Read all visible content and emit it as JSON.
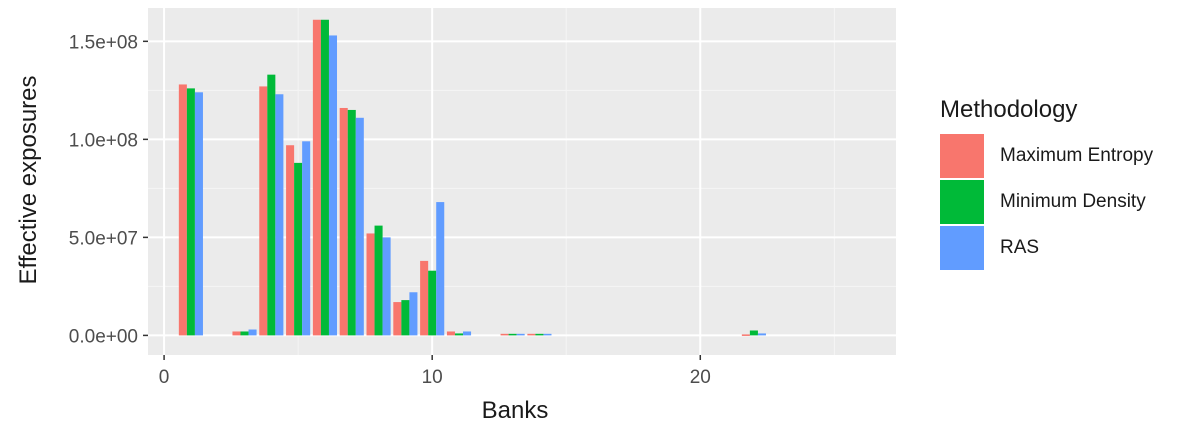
{
  "chart_data": {
    "type": "bar",
    "xlabel": "Banks",
    "ylabel": "Effective exposures",
    "xlim": [
      -0.6,
      27.3
    ],
    "ylim": [
      -10000000,
      167000000
    ],
    "x_ticks": [
      0,
      10,
      20
    ],
    "x_tick_labels": [
      "0",
      "10",
      "20"
    ],
    "y_ticks": [
      0,
      50000000,
      100000000,
      150000000
    ],
    "y_tick_labels": [
      "0.0e+00",
      "5.0e+07",
      "1.0e+08",
      "1.5e+08"
    ],
    "legend": {
      "title": "Methodology",
      "placement": "right"
    },
    "x": [
      1,
      3,
      4,
      5,
      6,
      7,
      8,
      9,
      10,
      11,
      13,
      14,
      22
    ],
    "series": [
      {
        "name": "Maximum Entropy",
        "color": "#F8766D",
        "values": [
          128000000,
          2000000,
          127000000,
          97000000,
          161000000,
          116000000,
          52000000,
          17000000,
          38000000,
          2000000,
          800000,
          800000,
          500000
        ]
      },
      {
        "name": "Minimum Density",
        "color": "#00BA38",
        "values": [
          126000000,
          2000000,
          133000000,
          88000000,
          161000000,
          115000000,
          56000000,
          18000000,
          33000000,
          1000000,
          800000,
          800000,
          2500000
        ]
      },
      {
        "name": "RAS",
        "color": "#619CFF",
        "values": [
          124000000,
          3000000,
          123000000,
          99000000,
          153000000,
          111000000,
          50000000,
          22000000,
          68000000,
          2000000,
          800000,
          800000,
          1000000
        ]
      }
    ]
  }
}
